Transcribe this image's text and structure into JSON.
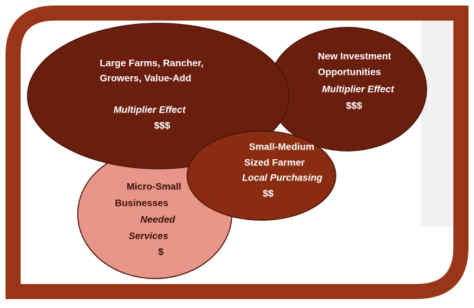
{
  "nodes": [
    {
      "color": "#6a1e0e",
      "text_color": "#ffffff",
      "lines": [
        {
          "text": "New Investment",
          "italic": false
        },
        {
          "text": "Opportunities",
          "italic": false
        },
        {
          "text": "Multiplier Effect",
          "italic": true
        },
        {
          "text": "$$$",
          "italic": false
        }
      ]
    },
    {
      "color": "#e8958a",
      "text_color": "#3a1208",
      "lines": [
        {
          "text": "Micro-Small",
          "italic": false
        },
        {
          "text": "Businesses",
          "italic": false
        },
        {
          "text": "Needed",
          "italic": true
        },
        {
          "text": "Services",
          "italic": true
        },
        {
          "text": "$",
          "italic": false
        }
      ]
    },
    {
      "color": "#6a1e0e",
      "text_color": "#ffffff",
      "lines": [
        {
          "text": "Large Farms, Rancher,",
          "italic": false
        },
        {
          "text": "Growers, Value-Add",
          "italic": false
        },
        {
          "text": "Multiplier Effect",
          "italic": true
        },
        {
          "text": "$$$",
          "italic": false
        }
      ]
    },
    {
      "color": "#8a2c12",
      "text_color": "#ffffff",
      "lines": [
        {
          "text": "Small-Medium",
          "italic": false
        },
        {
          "text": "Sized Farmer",
          "italic": false
        },
        {
          "text": "Local Purchasing",
          "italic": true
        },
        {
          "text": "$$",
          "italic": false
        }
      ]
    }
  ]
}
